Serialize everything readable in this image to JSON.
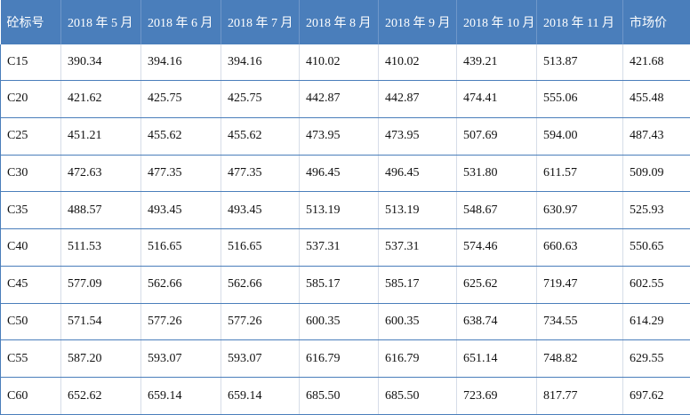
{
  "table": {
    "header": [
      "砼标号",
      "2018 年 5 月",
      "2018 年 6 月",
      "2018 年 7 月",
      "2018 年 8 月",
      "2018 年 9 月",
      "2018 年 10 月",
      "2018 年 11 月",
      "市场价"
    ],
    "rows": [
      [
        "C15",
        "390.34",
        "394.16",
        "394.16",
        "410.02",
        "410.02",
        "439.21",
        "513.87",
        "421.68"
      ],
      [
        "C20",
        "421.62",
        "425.75",
        "425.75",
        "442.87",
        "442.87",
        "474.41",
        "555.06",
        "455.48"
      ],
      [
        "C25",
        "451.21",
        "455.62",
        "455.62",
        "473.95",
        "473.95",
        "507.69",
        "594.00",
        "487.43"
      ],
      [
        "C30",
        "472.63",
        "477.35",
        "477.35",
        "496.45",
        "496.45",
        "531.80",
        "611.57",
        "509.09"
      ],
      [
        "C35",
        "488.57",
        "493.45",
        "493.45",
        "513.19",
        "513.19",
        "548.67",
        "630.97",
        "525.93"
      ],
      [
        "C40",
        "511.53",
        "516.65",
        "516.65",
        "537.31",
        "537.31",
        "574.46",
        "660.63",
        "550.65"
      ],
      [
        "C45",
        "577.09",
        "562.66",
        "562.66",
        "585.17",
        "585.17",
        "625.62",
        "719.47",
        "602.55"
      ],
      [
        "C50",
        "571.54",
        "577.26",
        "577.26",
        "600.35",
        "600.35",
        "638.74",
        "734.55",
        "614.29"
      ],
      [
        "C55",
        "587.20",
        "593.07",
        "593.07",
        "616.79",
        "616.79",
        "651.14",
        "748.82",
        "629.55"
      ],
      [
        "C60",
        "652.62",
        "659.14",
        "659.14",
        "685.50",
        "685.50",
        "723.69",
        "817.77",
        "697.62"
      ]
    ]
  }
}
